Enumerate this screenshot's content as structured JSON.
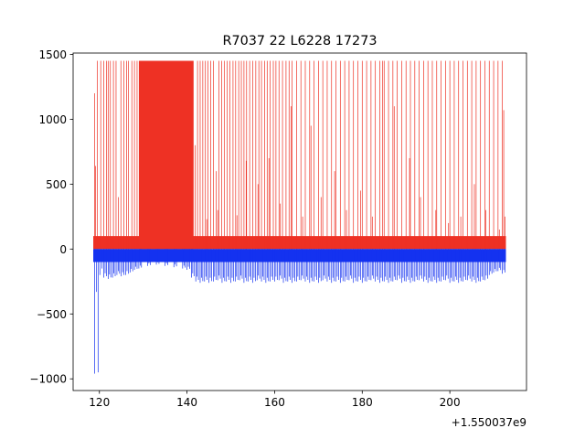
{
  "chart_data": {
    "type": "bar",
    "title": "R7037 22 L6228 17273",
    "xlabel": "",
    "ylabel": "",
    "x_offset_label": "+1.550037e9",
    "xlim": [
      114.0,
      217.5
    ],
    "ylim": [
      -1090,
      1510
    ],
    "x_ticks": [
      120,
      140,
      160,
      180,
      200
    ],
    "x_tick_labels": [
      "120",
      "140",
      "160",
      "180",
      "200"
    ],
    "y_ticks": [
      -1000,
      -500,
      0,
      500,
      1000,
      1500
    ],
    "y_tick_labels": [
      "−1000",
      "−500",
      "0",
      "500",
      "1000",
      "1500"
    ],
    "grid": false,
    "legend": "none",
    "series": [
      {
        "color": "#ee3124",
        "baseline_band": [
          0,
          100
        ],
        "cap_value": 1450,
        "saturated_ranges": [
          [
            129.0,
            141.5
          ]
        ],
        "spikes": [
          [
            118.9,
            1200
          ],
          [
            119.1,
            640
          ],
          [
            119.5,
            1450
          ],
          [
            120.3,
            1450
          ],
          [
            121.0,
            1450
          ],
          [
            121.6,
            1450
          ],
          [
            122.0,
            1450
          ],
          [
            122.5,
            1450
          ],
          [
            123.2,
            1450
          ],
          [
            123.8,
            1450
          ],
          [
            124.3,
            400
          ],
          [
            124.9,
            1450
          ],
          [
            125.6,
            1450
          ],
          [
            126.2,
            1450
          ],
          [
            126.6,
            1450
          ],
          [
            127.4,
            1450
          ],
          [
            128.0,
            1450
          ],
          [
            128.6,
            1450
          ],
          [
            141.9,
            800
          ],
          [
            142.4,
            1450
          ],
          [
            143.0,
            1450
          ],
          [
            143.6,
            1450
          ],
          [
            144.2,
            1450
          ],
          [
            144.8,
            1450
          ],
          [
            145.4,
            1450
          ],
          [
            146.0,
            1450
          ],
          [
            146.7,
            600
          ],
          [
            147.3,
            1450
          ],
          [
            147.9,
            1450
          ],
          [
            148.5,
            1450
          ],
          [
            149.2,
            1450
          ],
          [
            149.8,
            1450
          ],
          [
            150.5,
            1450
          ],
          [
            151.1,
            1450
          ],
          [
            151.8,
            1450
          ],
          [
            152.4,
            1450
          ],
          [
            153.0,
            1450
          ],
          [
            153.6,
            1450
          ],
          [
            154.3,
            1450
          ],
          [
            155.0,
            1450
          ],
          [
            155.7,
            1450
          ],
          [
            156.4,
            1450
          ],
          [
            157.0,
            1450
          ],
          [
            157.7,
            1450
          ],
          [
            158.3,
            1450
          ],
          [
            159.0,
            1450
          ],
          [
            159.7,
            1450
          ],
          [
            160.3,
            1450
          ],
          [
            161.0,
            1450
          ],
          [
            161.8,
            1450
          ],
          [
            162.6,
            1450
          ],
          [
            163.3,
            1450
          ],
          [
            164.0,
            1450
          ],
          [
            165.0,
            1450
          ],
          [
            166.0,
            1450
          ],
          [
            167.0,
            1450
          ],
          [
            168.0,
            1450
          ],
          [
            169.0,
            1450
          ],
          [
            170.0,
            1450
          ],
          [
            171.0,
            1450
          ],
          [
            172.0,
            1450
          ],
          [
            173.0,
            1450
          ],
          [
            174.0,
            1450
          ],
          [
            175.0,
            1450
          ],
          [
            176.0,
            1450
          ],
          [
            177.0,
            1450
          ],
          [
            178.0,
            1450
          ],
          [
            179.0,
            1450
          ],
          [
            180.0,
            1450
          ],
          [
            181.0,
            1450
          ],
          [
            182.0,
            1450
          ],
          [
            183.0,
            1450
          ],
          [
            184.0,
            1450
          ],
          [
            185.0,
            1450
          ],
          [
            186.0,
            1450
          ],
          [
            187.0,
            1450
          ],
          [
            188.0,
            1450
          ],
          [
            189.0,
            1450
          ],
          [
            190.0,
            1450
          ],
          [
            191.0,
            1450
          ],
          [
            192.0,
            1450
          ],
          [
            193.0,
            1450
          ],
          [
            194.0,
            1450
          ],
          [
            195.0,
            1450
          ],
          [
            196.0,
            1450
          ],
          [
            197.0,
            1450
          ],
          [
            198.0,
            1450
          ],
          [
            199.0,
            1450
          ],
          [
            200.0,
            1450
          ],
          [
            201.0,
            1450
          ],
          [
            202.0,
            1450
          ],
          [
            203.0,
            1450
          ],
          [
            204.0,
            1450
          ],
          [
            205.0,
            1450
          ],
          [
            206.0,
            1450
          ],
          [
            207.0,
            1450
          ],
          [
            208.0,
            1450
          ],
          [
            209.0,
            1450
          ],
          [
            210.0,
            1450
          ],
          [
            211.0,
            1450
          ],
          [
            212.0,
            1450
          ],
          [
            144.5,
            230
          ],
          [
            147.0,
            300
          ],
          [
            151.4,
            260
          ],
          [
            153.5,
            680
          ],
          [
            156.2,
            500
          ],
          [
            158.7,
            700
          ],
          [
            161.3,
            350
          ],
          [
            163.8,
            1100
          ],
          [
            166.4,
            250
          ],
          [
            168.3,
            950
          ],
          [
            170.6,
            400
          ],
          [
            173.7,
            600
          ],
          [
            176.4,
            300
          ],
          [
            179.6,
            450
          ],
          [
            182.3,
            250
          ],
          [
            184.6,
            1450
          ],
          [
            187.3,
            1100
          ],
          [
            190.8,
            700
          ],
          [
            193.3,
            400
          ],
          [
            196.8,
            300
          ],
          [
            199.7,
            200
          ],
          [
            202.5,
            250
          ],
          [
            205.6,
            500
          ],
          [
            208.2,
            300
          ],
          [
            211.3,
            150
          ],
          [
            212.3,
            1070
          ],
          [
            212.6,
            250
          ]
        ]
      },
      {
        "color": "#1432f0",
        "baseline_band": [
          0,
          -100
        ],
        "deep_values": [
          [
            118.9,
            -960
          ],
          [
            119.3,
            -330
          ],
          [
            119.7,
            -950
          ],
          [
            120.1,
            -200
          ],
          [
            120.6,
            -150
          ]
        ],
        "spikes": [
          [
            121.0,
            -220
          ],
          [
            122.0,
            -230
          ],
          [
            123.0,
            -220
          ],
          [
            124.0,
            -200
          ],
          [
            125.0,
            -210
          ],
          [
            126.0,
            -200
          ],
          [
            127.0,
            -180
          ],
          [
            128.0,
            -160
          ],
          [
            129.0,
            -150
          ],
          [
            131.0,
            -130
          ],
          [
            133.0,
            -120
          ],
          [
            135.0,
            -130
          ],
          [
            137.0,
            -140
          ],
          [
            139.0,
            -150
          ],
          [
            140.0,
            -160
          ],
          [
            141.0,
            -220
          ],
          [
            142.0,
            -250
          ],
          [
            143.0,
            -260
          ],
          [
            144.0,
            -250
          ],
          [
            145.0,
            -260
          ],
          [
            146.0,
            -250
          ],
          [
            147.0,
            -240
          ],
          [
            148.0,
            -260
          ],
          [
            149.0,
            -250
          ],
          [
            150.0,
            -260
          ],
          [
            151.0,
            -250
          ],
          [
            152.0,
            -240
          ],
          [
            153.0,
            -260
          ],
          [
            154.0,
            -250
          ],
          [
            155.0,
            -260
          ],
          [
            156.0,
            -240
          ],
          [
            157.0,
            -250
          ],
          [
            158.0,
            -260
          ],
          [
            159.0,
            -250
          ],
          [
            160.0,
            -250
          ],
          [
            161.0,
            -240
          ],
          [
            162.0,
            -260
          ],
          [
            163.0,
            -250
          ],
          [
            164.0,
            -260
          ],
          [
            165.0,
            -250
          ],
          [
            166.0,
            -240
          ],
          [
            167.0,
            -250
          ],
          [
            168.0,
            -260
          ],
          [
            169.0,
            -250
          ],
          [
            170.0,
            -260
          ],
          [
            171.0,
            -240
          ],
          [
            172.0,
            -250
          ],
          [
            173.0,
            -260
          ],
          [
            174.0,
            -250
          ],
          [
            175.0,
            -260
          ],
          [
            176.0,
            -250
          ],
          [
            177.0,
            -240
          ],
          [
            178.0,
            -260
          ],
          [
            179.0,
            -250
          ],
          [
            180.0,
            -260
          ],
          [
            181.0,
            -250
          ],
          [
            182.0,
            -240
          ],
          [
            183.0,
            -250
          ],
          [
            184.0,
            -260
          ],
          [
            185.0,
            -250
          ],
          [
            186.0,
            -260
          ],
          [
            187.0,
            -250
          ],
          [
            188.0,
            -240
          ],
          [
            189.0,
            -260
          ],
          [
            190.0,
            -250
          ],
          [
            191.0,
            -260
          ],
          [
            192.0,
            -250
          ],
          [
            193.0,
            -240
          ],
          [
            194.0,
            -250
          ],
          [
            195.0,
            -260
          ],
          [
            196.0,
            -250
          ],
          [
            197.0,
            -260
          ],
          [
            198.0,
            -250
          ],
          [
            199.0,
            -240
          ],
          [
            200.0,
            -260
          ],
          [
            201.0,
            -250
          ],
          [
            202.0,
            -260
          ],
          [
            203.0,
            -250
          ],
          [
            204.0,
            -240
          ],
          [
            205.0,
            -250
          ],
          [
            206.0,
            -260
          ],
          [
            207.0,
            -250
          ],
          [
            208.0,
            -240
          ],
          [
            209.0,
            -200
          ],
          [
            210.0,
            -180
          ],
          [
            211.0,
            -170
          ],
          [
            212.0,
            -190
          ]
        ]
      }
    ]
  }
}
